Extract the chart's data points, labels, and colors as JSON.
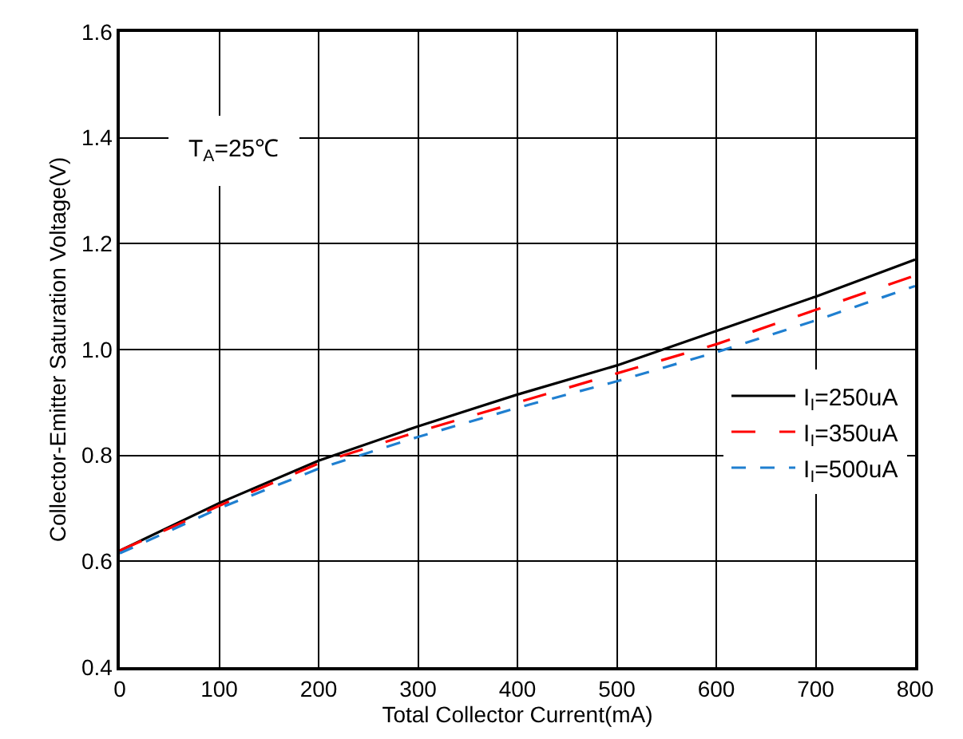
{
  "chart_data": {
    "type": "line",
    "xlabel": "Total Collector Current(mA)",
    "ylabel": "Collector-Emitter Saturation Voltage(V)",
    "annotations": [
      "T$_{A}$=25℃"
    ],
    "x": [
      0,
      100,
      200,
      300,
      400,
      500,
      600,
      700,
      800
    ],
    "series": [
      {
        "name": "I$_{I}$=250uA",
        "color": "#000000",
        "line_style": "solid",
        "values": [
          0.62,
          0.71,
          0.79,
          0.855,
          0.915,
          0.97,
          1.035,
          1.1,
          1.17
        ]
      },
      {
        "name": "I$_{I}$=350uA",
        "color": "#ff0000",
        "line_style": "dashed",
        "values": [
          0.62,
          0.705,
          0.785,
          0.845,
          0.9,
          0.955,
          1.01,
          1.075,
          1.14
        ]
      },
      {
        "name": "I$_{I}$=500uA",
        "color": "#1f7fd0",
        "line_style": "dotted",
        "values": [
          0.615,
          0.7,
          0.775,
          0.835,
          0.89,
          0.94,
          0.995,
          1.055,
          1.12
        ]
      }
    ],
    "xlim": [
      0,
      800
    ],
    "xticks": [
      0,
      100,
      200,
      300,
      400,
      500,
      600,
      700,
      800
    ],
    "ylim": [
      0.4,
      1.6
    ],
    "yticks": [
      {
        "value": 0.4,
        "label": "0.4"
      },
      {
        "value": 0.6,
        "label": "0.6"
      },
      {
        "value": 0.8,
        "label": "0.8"
      },
      {
        "value": 1.0,
        "label": "1.0"
      },
      {
        "value": 1.2,
        "label": "1.2"
      },
      {
        "value": 1.4,
        "label": "1.4"
      },
      {
        "value": 1.6,
        "label": "1.6"
      }
    ],
    "grid": true,
    "legend": "right",
    "marker": "none"
  }
}
